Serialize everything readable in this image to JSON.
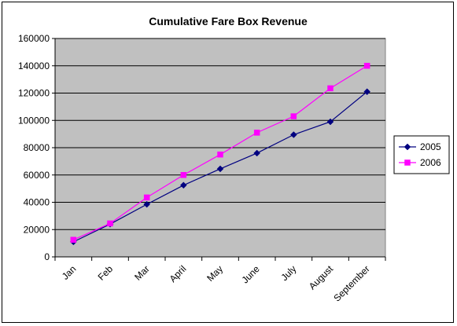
{
  "chart_data": {
    "type": "line",
    "title": "Cumulative Fare Box Revenue",
    "xlabel": "",
    "ylabel": "",
    "ylim": [
      0,
      160000
    ],
    "yticks": [
      0,
      20000,
      40000,
      60000,
      80000,
      100000,
      120000,
      140000,
      160000
    ],
    "categories": [
      "Jan",
      "Feb",
      "Mar",
      "April",
      "May",
      "June",
      "July",
      "August",
      "September"
    ],
    "series": [
      {
        "name": "2005",
        "color": "#000080",
        "marker": "diamond",
        "values": [
          11000,
          24000,
          38500,
          52500,
          64500,
          76000,
          89500,
          99000,
          121000
        ]
      },
      {
        "name": "2006",
        "color": "#ff00ff",
        "marker": "square",
        "values": [
          12500,
          24500,
          43500,
          60000,
          75000,
          91000,
          103000,
          123500,
          140000
        ]
      }
    ],
    "grid": true,
    "legend": "right",
    "plot_background": "#c0c0c0"
  }
}
